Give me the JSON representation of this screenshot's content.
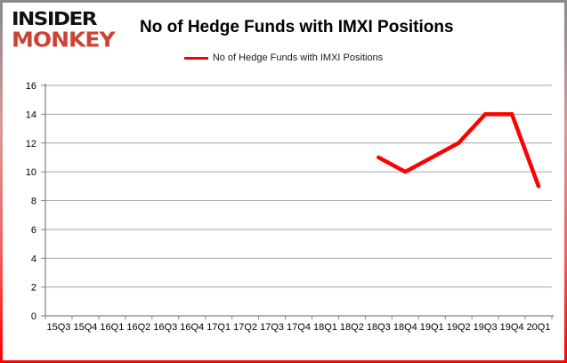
{
  "logo": {
    "line1": "INSIDER",
    "line2": "MONKEY"
  },
  "header": {
    "title": "No of Hedge Funds with IMXI Positions"
  },
  "legend": {
    "label": "No of Hedge Funds with IMXI Positions"
  },
  "colors": {
    "series": "#ff0000",
    "gridline": "#a6a6a6",
    "axis": "#808080",
    "tick": "#808080",
    "logo_black": "#111111",
    "logo_red": "#cb4437",
    "border_top": "#8a8a8a",
    "border_bottom": "#ff0000",
    "background": "#ffffff"
  },
  "chart_data": {
    "type": "line",
    "title": "No of Hedge Funds with IMXI Positions",
    "xlabel": "",
    "ylabel": "",
    "categories": [
      "15Q3",
      "15Q4",
      "16Q1",
      "16Q2",
      "16Q3",
      "16Q4",
      "17Q1",
      "17Q2",
      "17Q3",
      "17Q4",
      "18Q1",
      "18Q2",
      "18Q3",
      "18Q4",
      "19Q1",
      "19Q2",
      "19Q3",
      "19Q4",
      "20Q1"
    ],
    "series": [
      {
        "name": "No of Hedge Funds with IMXI Positions",
        "color": "#ff0000",
        "values": [
          null,
          null,
          null,
          null,
          null,
          null,
          null,
          null,
          null,
          null,
          null,
          null,
          11,
          10,
          11,
          12,
          14,
          14,
          9
        ]
      }
    ],
    "ylim": [
      0,
      16
    ],
    "yticks": [
      0,
      2,
      4,
      6,
      8,
      10,
      12,
      14,
      16
    ],
    "grid": true,
    "legend_position": "top-center"
  }
}
